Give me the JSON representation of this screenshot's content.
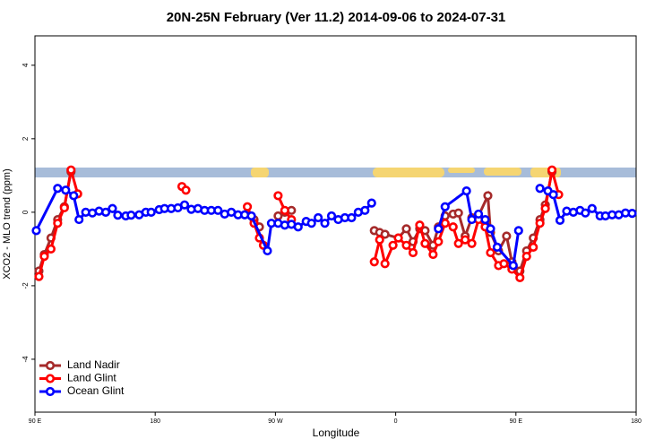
{
  "chart_data": {
    "type": "line",
    "title": "20N-25N February (Ver 11.2)   2014-09-06 to 2024-07-31",
    "x_label": "Longitude",
    "y_label": "XCO2 - MLO trend (ppm)",
    "xlim": [
      90,
      540
    ],
    "xticks": [
      {
        "value": 90,
        "label": "90 E"
      },
      {
        "value": 180,
        "label": "180"
      },
      {
        "value": 270,
        "label": "90 W"
      },
      {
        "value": 360,
        "label": "0"
      },
      {
        "value": 450,
        "label": "90 E"
      },
      {
        "value": 540,
        "label": "180"
      }
    ],
    "ylim": [
      -5.44,
      4.8
    ],
    "yticks": [
      -4,
      -2,
      0,
      2,
      4
    ],
    "legend": "bottom-left",
    "series": [
      {
        "name": "Land Nadir",
        "color": "#a52a2a",
        "x": [
          93,
          97,
          102,
          107,
          112,
          117,
          null,
          254,
          258,
          null,
          272,
          277,
          282,
          null,
          344,
          348,
          352,
          362,
          368,
          373,
          378,
          382,
          388,
          392,
          397,
          403,
          407,
          412,
          417,
          422,
          429,
          431,
          437,
          443,
          447,
          453,
          458,
          463,
          468,
          472,
          477
        ],
        "values": [
          -1.6,
          -1.15,
          -0.7,
          -0.2,
          0.15,
          1.1,
          null,
          -0.2,
          -0.4,
          null,
          -0.1,
          0.0,
          0.05,
          null,
          -0.5,
          -0.55,
          -0.6,
          -0.7,
          -0.45,
          -0.8,
          -0.45,
          -0.5,
          -0.9,
          -0.4,
          -0.1,
          -0.05,
          -0.02,
          -0.65,
          -0.15,
          -0.1,
          0.45,
          -0.55,
          -1.05,
          -0.65,
          -1.35,
          -1.6,
          -1.05,
          -0.7,
          -0.2,
          0.2,
          1.1
        ]
      },
      {
        "name": "Land Glint",
        "color": "#ff0000",
        "x": [
          93,
          97,
          102,
          107,
          112,
          117,
          122,
          null,
          200,
          203,
          null,
          249,
          254,
          258,
          261,
          null,
          272,
          277,
          282,
          null,
          344,
          348,
          352,
          358,
          362,
          368,
          373,
          378,
          382,
          388,
          392,
          397,
          403,
          407,
          412,
          417,
          422,
          427,
          431,
          437,
          441,
          447,
          453,
          458,
          463,
          468,
          472,
          477,
          482
        ],
        "values": [
          -1.75,
          -1.2,
          -1.0,
          -0.3,
          0.12,
          1.15,
          0.5,
          null,
          0.7,
          0.6,
          null,
          0.15,
          -0.3,
          -0.7,
          -0.9,
          null,
          0.45,
          0.05,
          -0.2,
          null,
          -1.35,
          -0.75,
          -1.4,
          -0.9,
          -0.7,
          -0.9,
          -1.1,
          -0.35,
          -0.85,
          -1.15,
          -0.8,
          -0.3,
          -0.4,
          -0.85,
          -0.75,
          -0.85,
          -0.2,
          -0.4,
          -1.1,
          -1.45,
          -1.4,
          -1.55,
          -1.78,
          -1.2,
          -0.95,
          -0.3,
          0.1,
          1.15,
          0.48
        ]
      },
      {
        "name": "Ocean Glint",
        "color": "#0000ff",
        "x": [
          91,
          107,
          113,
          119,
          123,
          128,
          133,
          138,
          143,
          148,
          152,
          158,
          162,
          168,
          173,
          177,
          183,
          187,
          192,
          197,
          202,
          207,
          212,
          217,
          222,
          227,
          232,
          237,
          242,
          247,
          252,
          264,
          267,
          272,
          277,
          282,
          287,
          293,
          297,
          302,
          307,
          312,
          317,
          322,
          327,
          332,
          337,
          342,
          null,
          392,
          397,
          413,
          417,
          422,
          427,
          431,
          436,
          448,
          452,
          null,
          468,
          474,
          478,
          483,
          488,
          493,
          498,
          502,
          507,
          513,
          517,
          522,
          527,
          532,
          537
        ],
        "values": [
          -0.5,
          0.65,
          0.6,
          0.45,
          -0.2,
          0.0,
          -0.02,
          0.03,
          0.0,
          0.1,
          -0.08,
          -0.1,
          -0.08,
          -0.07,
          0.0,
          0.0,
          0.07,
          0.1,
          0.1,
          0.12,
          0.2,
          0.08,
          0.1,
          0.05,
          0.05,
          0.05,
          -0.05,
          0.0,
          -0.07,
          -0.07,
          -0.1,
          -1.05,
          -0.3,
          -0.3,
          -0.35,
          -0.33,
          -0.4,
          -0.25,
          -0.3,
          -0.15,
          -0.3,
          -0.1,
          -0.2,
          -0.15,
          -0.15,
          0.0,
          0.05,
          0.25,
          null,
          -0.45,
          0.15,
          0.58,
          -0.2,
          -0.05,
          -0.2,
          -0.45,
          -0.95,
          -1.45,
          -0.5,
          null,
          0.65,
          0.58,
          0.48,
          -0.22,
          0.03,
          0.0,
          0.05,
          -0.02,
          0.1,
          -0.1,
          -0.1,
          -0.07,
          -0.07,
          -0.02,
          -0.03
        ]
      }
    ]
  }
}
